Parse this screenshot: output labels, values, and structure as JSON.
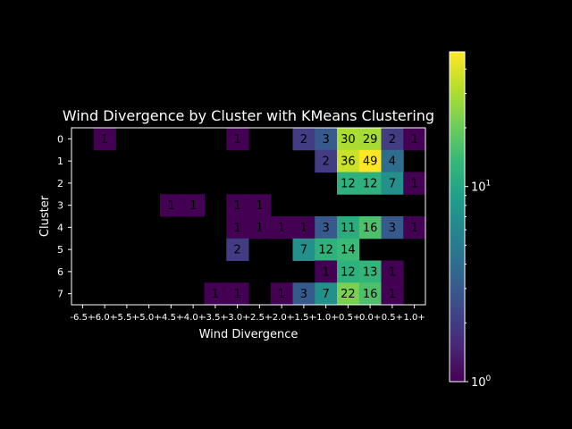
{
  "chart_data": {
    "type": "heatmap",
    "title": "Wind Divergence by Cluster with KMeans Clustering",
    "xlabel": "Wind Divergence",
    "ylabel": "Cluster",
    "x_categories": [
      "-6.5+",
      "-6.0+",
      "-5.5+",
      "-5.0+",
      "-4.5+",
      "-4.0+",
      "-3.5+",
      "-3.0+",
      "-2.5+",
      "-2.0+",
      "-1.5+",
      "-1.0+",
      "-0.5+",
      "0.0+",
      "0.5+",
      "1.0+"
    ],
    "y_categories": [
      "0",
      "1",
      "2",
      "3",
      "4",
      "5",
      "6",
      "7"
    ],
    "values": [
      [
        null,
        1,
        null,
        null,
        null,
        null,
        null,
        1,
        null,
        null,
        2,
        3,
        30,
        29,
        2,
        1
      ],
      [
        null,
        null,
        null,
        null,
        null,
        null,
        null,
        null,
        null,
        null,
        null,
        2,
        36,
        49,
        4,
        null
      ],
      [
        null,
        null,
        null,
        null,
        null,
        null,
        null,
        null,
        null,
        null,
        null,
        null,
        12,
        12,
        7,
        1
      ],
      [
        null,
        null,
        null,
        null,
        1,
        1,
        null,
        1,
        1,
        null,
        null,
        null,
        null,
        null,
        null,
        null
      ],
      [
        null,
        null,
        null,
        null,
        null,
        null,
        null,
        1,
        1,
        1,
        1,
        3,
        11,
        16,
        3,
        1
      ],
      [
        null,
        null,
        null,
        null,
        null,
        null,
        null,
        2,
        null,
        null,
        7,
        12,
        14,
        null,
        null,
        null
      ],
      [
        null,
        null,
        null,
        null,
        null,
        null,
        null,
        null,
        null,
        null,
        null,
        1,
        12,
        13,
        1,
        null
      ],
      [
        null,
        null,
        null,
        null,
        null,
        null,
        1,
        1,
        null,
        1,
        3,
        7,
        22,
        16,
        1,
        null
      ]
    ],
    "colormap": "viridis",
    "color_scale": "log",
    "colorbar": {
      "range": [
        1,
        49
      ],
      "tick_labels": [
        {
          "base": "10",
          "exp": "0",
          "value": 1
        },
        {
          "base": "10",
          "exp": "1",
          "value": 10
        }
      ]
    },
    "empty_cell_color": "#000000"
  }
}
